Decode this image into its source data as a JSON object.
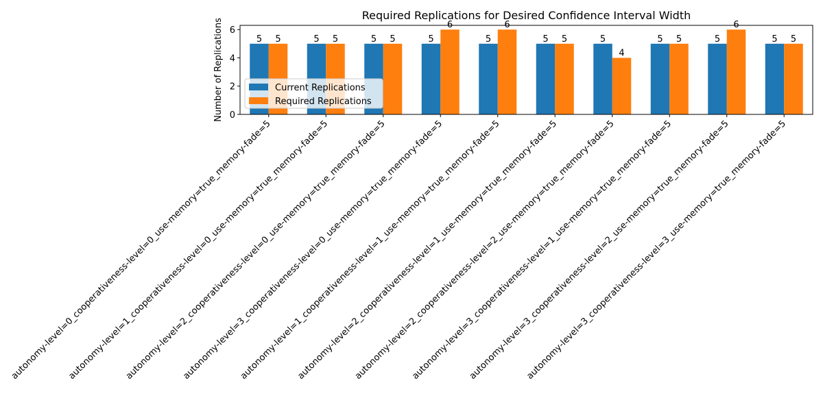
{
  "chart_data": {
    "type": "bar",
    "title": "Required Replications for Desired Confidence Interval Width",
    "xlabel": "",
    "ylabel": "Number of Replications",
    "ylim": [
      0,
      6.3
    ],
    "yticks": [
      0,
      2,
      4,
      6
    ],
    "categories": [
      "autonomy-level=0_cooperativeness-level=0_use-memory=true_memory-fade=5",
      "autonomy-level=1_cooperativeness-level=0_use-memory=true_memory-fade=5",
      "autonomy-level=2_cooperativeness-level=0_use-memory=true_memory-fade=5",
      "autonomy-level=3_cooperativeness-level=0_use-memory=true_memory-fade=5",
      "autonomy-level=1_cooperativeness-level=1_use-memory=true_memory-fade=5",
      "autonomy-level=2_cooperativeness-level=1_use-memory=true_memory-fade=5",
      "autonomy-level=2_cooperativeness-level=2_use-memory=true_memory-fade=5",
      "autonomy-level=3_cooperativeness-level=1_use-memory=true_memory-fade=5",
      "autonomy-level=3_cooperativeness-level=2_use-memory=true_memory-fade=5",
      "autonomy-level=3_cooperativeness-level=3_use-memory=true_memory-fade=5"
    ],
    "series": [
      {
        "name": "Current Replications",
        "color": "#1f77b4",
        "values": [
          5,
          5,
          5,
          5,
          5,
          5,
          5,
          5,
          5,
          5
        ]
      },
      {
        "name": "Required Replications",
        "color": "#ff7f0e",
        "values": [
          5,
          5,
          5,
          6,
          6,
          5,
          4,
          5,
          6,
          5
        ]
      }
    ],
    "legend_position": "center-left",
    "grid": false
  }
}
